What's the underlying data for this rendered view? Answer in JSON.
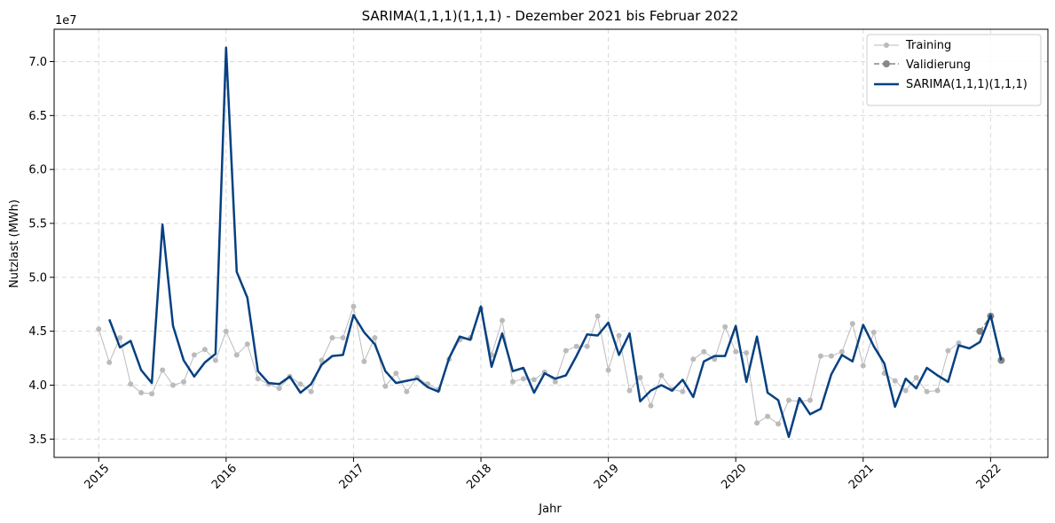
{
  "chart_data": {
    "type": "line",
    "title": "SARIMA(1,1,1)(1,1,1) - Dezember 2021 bis Februar 2022",
    "xlabel": "Jahr",
    "ylabel": "Nutzlast (MWh)",
    "y_scale_label": "1e7",
    "x_ticks": [
      "2015",
      "2016",
      "2017",
      "2018",
      "2019",
      "2020",
      "2021",
      "2022"
    ],
    "y_ticks": [
      "3.5",
      "4.0",
      "4.5",
      "5.0",
      "5.5",
      "6.0",
      "6.5",
      "7.0"
    ],
    "xlim": [
      2014.65,
      2022.45
    ],
    "ylim": [
      3.33,
      7.3
    ],
    "grid": true,
    "legend_position": "top-right",
    "colors": {
      "training": "#bbbbbb",
      "validation": "#888888",
      "model": "#064080"
    },
    "series": [
      {
        "name": "Training",
        "style": "thin-line-with-dots",
        "start": "2015-01",
        "values": [
          4.52,
          4.21,
          4.44,
          4.01,
          3.93,
          3.92,
          4.14,
          4.0,
          4.03,
          4.28,
          4.33,
          4.23,
          4.5,
          4.28,
          4.38,
          4.06,
          4.01,
          3.97,
          4.08,
          4.01,
          3.94,
          4.23,
          4.44,
          4.44,
          4.73,
          4.22,
          4.44,
          3.99,
          4.11,
          3.94,
          4.07,
          4.01,
          3.96,
          4.24,
          4.42,
          4.44,
          4.71,
          4.28,
          4.6,
          4.03,
          4.06,
          4.05,
          4.12,
          4.03,
          4.32,
          4.36,
          4.36,
          4.64,
          4.14,
          4.46,
          3.95,
          4.07,
          3.81,
          4.09,
          3.96,
          3.94,
          4.24,
          4.31,
          4.24,
          4.54,
          4.31,
          4.3,
          3.65,
          3.71,
          3.64,
          3.86,
          3.85,
          3.86,
          4.27,
          4.27,
          4.31,
          4.57,
          4.18,
          4.49,
          4.11,
          4.04,
          3.95,
          4.07,
          3.94,
          3.95,
          4.32,
          4.39
        ]
      },
      {
        "name": "Validierung",
        "style": "dashed-line-with-dots",
        "start": "2021-12",
        "values": [
          4.5,
          4.64,
          4.23
        ]
      },
      {
        "name": "SARIMA(1,1,1)(1,1,1)",
        "style": "thick-line",
        "start": "2015-02",
        "values": [
          4.61,
          4.35,
          4.41,
          4.14,
          4.02,
          5.49,
          4.55,
          4.23,
          4.08,
          4.21,
          4.29,
          7.13,
          5.05,
          4.81,
          4.13,
          4.02,
          4.01,
          4.08,
          3.93,
          4.01,
          4.19,
          4.27,
          4.28,
          4.65,
          4.49,
          4.38,
          4.13,
          4.02,
          4.04,
          4.06,
          3.98,
          3.94,
          4.25,
          4.45,
          4.42,
          4.73,
          4.17,
          4.48,
          4.13,
          4.16,
          3.93,
          4.11,
          4.06,
          4.09,
          4.27,
          4.47,
          4.46,
          4.58,
          4.28,
          4.48,
          3.85,
          3.95,
          4.0,
          3.95,
          4.05,
          3.89,
          4.22,
          4.27,
          4.27,
          4.55,
          4.03,
          4.45,
          3.93,
          3.86,
          3.52,
          3.88,
          3.73,
          3.78,
          4.1,
          4.28,
          4.22,
          4.56,
          4.36,
          4.2,
          3.8,
          4.06,
          3.97,
          4.16,
          4.09,
          4.03,
          4.37,
          4.34,
          4.4,
          4.65,
          4.23
        ]
      }
    ]
  }
}
